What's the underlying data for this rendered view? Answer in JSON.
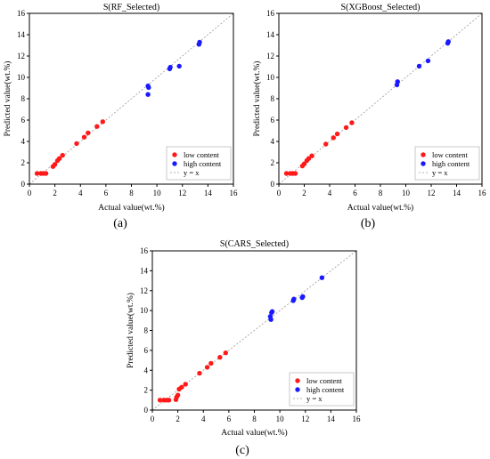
{
  "chart_data": [
    {
      "type": "scatter",
      "panel_label": "(a)",
      "title": "S(RF_Selected)",
      "xlabel": "Actual value(wt.%)",
      "ylabel": "Predicted value(wt.%)",
      "xlim": [
        0,
        16
      ],
      "ylim": [
        0,
        16
      ],
      "xticks": [
        0,
        2,
        4,
        6,
        8,
        10,
        12,
        14,
        16
      ],
      "yticks": [
        0,
        2,
        4,
        6,
        8,
        10,
        12,
        14,
        16
      ],
      "grid": false,
      "legend_position": "bottom-right",
      "reference_line": {
        "label": "y = x",
        "color": "#9a9a9a"
      },
      "series": [
        {
          "name": "low content",
          "color": "#ff1a1a",
          "points": [
            [
              0.6,
              1.0
            ],
            [
              0.9,
              1.0
            ],
            [
              1.1,
              1.0
            ],
            [
              1.3,
              1.0
            ],
            [
              1.85,
              1.65
            ],
            [
              2.0,
              1.85
            ],
            [
              2.2,
              2.2
            ],
            [
              2.35,
              2.4
            ],
            [
              2.6,
              2.7
            ],
            [
              3.7,
              3.8
            ],
            [
              4.3,
              4.4
            ],
            [
              4.6,
              4.8
            ],
            [
              5.3,
              5.4
            ],
            [
              5.75,
              5.85
            ]
          ]
        },
        {
          "name": "high content",
          "color": "#1a1aff",
          "points": [
            [
              9.3,
              8.4
            ],
            [
              9.35,
              9.05
            ],
            [
              9.3,
              9.2
            ],
            [
              11.0,
              10.8
            ],
            [
              11.05,
              10.95
            ],
            [
              11.75,
              11.05
            ],
            [
              13.3,
              13.1
            ],
            [
              13.35,
              13.3
            ]
          ]
        }
      ]
    },
    {
      "type": "scatter",
      "panel_label": "(b)",
      "title": "S(XGBoost_Selected)",
      "xlabel": "Actual value(wt.%)",
      "ylabel": "Predicted value(wt.%)",
      "xlim": [
        0,
        16
      ],
      "ylim": [
        0,
        16
      ],
      "xticks": [
        0,
        2,
        4,
        6,
        8,
        10,
        12,
        14,
        16
      ],
      "yticks": [
        0,
        2,
        4,
        6,
        8,
        10,
        12,
        14,
        16
      ],
      "grid": false,
      "legend_position": "bottom-right",
      "reference_line": {
        "label": "y = x",
        "color": "#9a9a9a"
      },
      "series": [
        {
          "name": "low content",
          "color": "#ff1a1a",
          "points": [
            [
              0.6,
              1.0
            ],
            [
              0.9,
              1.0
            ],
            [
              1.1,
              1.0
            ],
            [
              1.3,
              1.0
            ],
            [
              1.85,
              1.7
            ],
            [
              2.0,
              1.9
            ],
            [
              2.2,
              2.2
            ],
            [
              2.35,
              2.4
            ],
            [
              2.6,
              2.65
            ],
            [
              3.7,
              3.75
            ],
            [
              4.3,
              4.35
            ],
            [
              4.6,
              4.7
            ],
            [
              5.3,
              5.3
            ],
            [
              5.75,
              5.75
            ]
          ]
        },
        {
          "name": "high content",
          "color": "#1a1aff",
          "points": [
            [
              9.3,
              9.3
            ],
            [
              9.35,
              9.6
            ],
            [
              11.05,
              11.05
            ],
            [
              11.75,
              11.55
            ],
            [
              13.3,
              13.2
            ],
            [
              13.35,
              13.35
            ]
          ]
        }
      ]
    },
    {
      "type": "scatter",
      "panel_label": "(c)",
      "title": "S(CARS_Selected)",
      "xlabel": "Actual value(wt.%)",
      "ylabel": "Predicted value(wt.%)",
      "xlim": [
        0,
        16
      ],
      "ylim": [
        0,
        16
      ],
      "xticks": [
        0,
        2,
        4,
        6,
        8,
        10,
        12,
        14,
        16
      ],
      "yticks": [
        0,
        2,
        4,
        6,
        8,
        10,
        12,
        14,
        16
      ],
      "grid": false,
      "legend_position": "bottom-right",
      "reference_line": {
        "label": "y = x",
        "color": "#9a9a9a"
      },
      "series": [
        {
          "name": "low content",
          "color": "#ff1a1a",
          "points": [
            [
              0.6,
              1.0
            ],
            [
              0.9,
              1.0
            ],
            [
              1.1,
              1.0
            ],
            [
              1.3,
              1.0
            ],
            [
              1.85,
              1.05
            ],
            [
              1.9,
              1.3
            ],
            [
              2.0,
              1.5
            ],
            [
              2.1,
              2.1
            ],
            [
              2.3,
              2.3
            ],
            [
              2.6,
              2.6
            ],
            [
              3.7,
              3.7
            ],
            [
              4.3,
              4.3
            ],
            [
              4.6,
              4.7
            ],
            [
              5.3,
              5.3
            ],
            [
              5.75,
              5.75
            ]
          ]
        },
        {
          "name": "high content",
          "color": "#1a1aff",
          "points": [
            [
              9.3,
              9.1
            ],
            [
              9.25,
              9.4
            ],
            [
              9.35,
              9.8
            ],
            [
              9.4,
              9.9
            ],
            [
              11.05,
              11.0
            ],
            [
              11.1,
              11.15
            ],
            [
              11.75,
              11.3
            ],
            [
              11.8,
              11.4
            ],
            [
              13.3,
              13.3
            ]
          ]
        }
      ]
    }
  ]
}
